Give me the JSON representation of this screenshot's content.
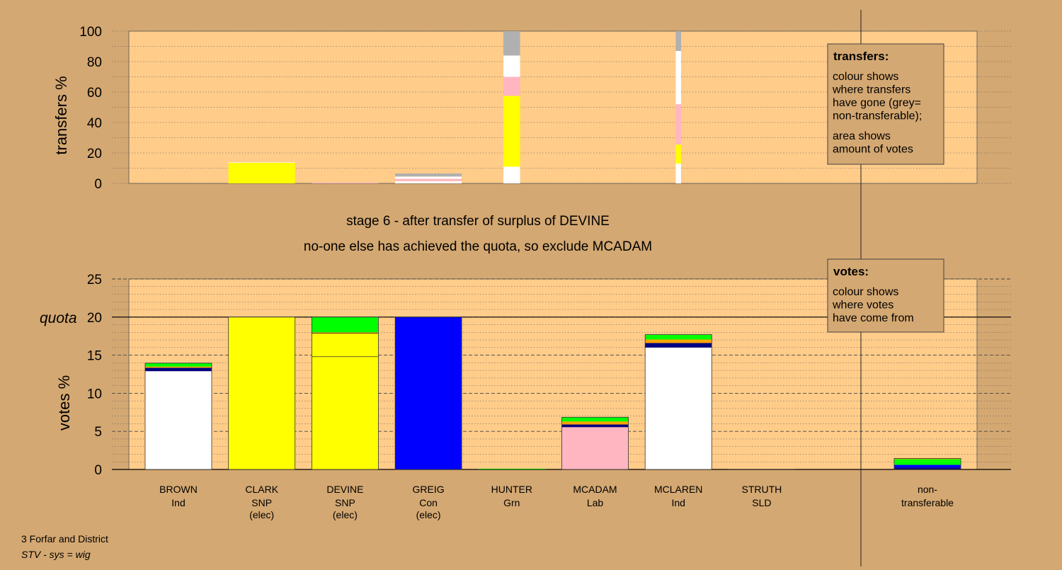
{
  "chart_data": [
    {
      "type": "bar",
      "stacked": true,
      "ylabel": "transfers %",
      "ylim": [
        0,
        100
      ],
      "yticks": [
        0,
        20,
        40,
        60,
        80,
        100
      ],
      "grid": "dotted horizontal every 10",
      "categories": [
        "BROWN",
        "CLARK",
        "DEVINE",
        "GREIG",
        "HUNTER",
        "MCADAM",
        "MCLAREN",
        "STRUTH"
      ],
      "bars": [
        {
          "category": "BROWN",
          "segments": []
        },
        {
          "category": "CLARK",
          "segments": [
            {
              "from": "SNP",
              "color": "#ffff00",
              "value": 13.5
            },
            {
              "from": "Ind",
              "color": "#ffffff",
              "value": 0.3
            }
          ]
        },
        {
          "category": "DEVINE",
          "segments": [
            {
              "from": "Lab",
              "color": "#ffb6c1",
              "value": 0.5
            }
          ]
        },
        {
          "category": "GREIG",
          "segments": [
            {
              "from": "Ind",
              "color": "#ffffff",
              "value": 1.5
            },
            {
              "from": "Lab",
              "color": "#ffb6c1",
              "value": 1.5
            },
            {
              "from": "Ind",
              "color": "#ffffff",
              "value": 1.5
            },
            {
              "from": "non-transferable",
              "color": "#b0b0b0",
              "value": 2.0
            }
          ]
        },
        {
          "category": "HUNTER",
          "segments": [
            {
              "from": "Ind",
              "color": "#ffffff",
              "value": 11
            },
            {
              "from": "SNP",
              "color": "#ffff00",
              "value": 46.5
            },
            {
              "from": "Lab",
              "color": "#ffb6c1",
              "value": 12.5
            },
            {
              "from": "Ind",
              "color": "#ffffff",
              "value": 14
            },
            {
              "from": "non-transferable",
              "color": "#b0b0b0",
              "value": 16
            }
          ]
        },
        {
          "category": "MCADAM",
          "segments": []
        },
        {
          "category": "MCLAREN",
          "segments": [
            {
              "from": "Ind",
              "color": "#ffffff",
              "value": 13
            },
            {
              "from": "SNP",
              "color": "#ffff00",
              "value": 12.5
            },
            {
              "from": "Lab",
              "color": "#ffb6c1",
              "value": 26.5
            },
            {
              "from": "Ind",
              "color": "#ffffff",
              "value": 35
            },
            {
              "from": "non-transferable",
              "color": "#b0b0b0",
              "value": 13
            }
          ]
        },
        {
          "category": "STRUTH",
          "segments": []
        }
      ],
      "bar_width_relative": [
        1,
        1,
        1,
        1,
        0.25,
        1,
        0.08,
        1
      ]
    },
    {
      "type": "bar",
      "stacked": true,
      "ylabel": "votes %",
      "ylim": [
        0,
        25
      ],
      "yticks": [
        0,
        5,
        10,
        15,
        20,
        25
      ],
      "quota": 20,
      "quota_label": "quota",
      "grid": "dashed every 5, dotted every 1",
      "bars": [
        {
          "category": "BROWN",
          "party": "Ind",
          "status": "",
          "segments": [
            {
              "color": "#ffffff",
              "value": 12.9
            },
            {
              "color": "#000080",
              "value": 0.45
            },
            {
              "color": "#ffa500",
              "value": 0.15
            },
            {
              "color": "#00ff00",
              "value": 0.45
            }
          ]
        },
        {
          "category": "CLARK",
          "party": "SNP",
          "status": "(elec)",
          "segments": [
            {
              "color": "#ffff00",
              "value": 20
            }
          ]
        },
        {
          "category": "DEVINE",
          "party": "SNP",
          "status": "(elec)",
          "segments": [
            {
              "color": "#ffff00",
              "value": 14.8
            },
            {
              "color": "#ffff00",
              "value": 3.0
            },
            {
              "color": "#ffa500",
              "value": 0.2
            },
            {
              "color": "#00ff00",
              "value": 2.0
            }
          ]
        },
        {
          "category": "GREIG",
          "party": "Con",
          "status": "(elec)",
          "segments": [
            {
              "color": "#0000ff",
              "value": 20
            }
          ]
        },
        {
          "category": "HUNTER",
          "party": "Grn",
          "status": "",
          "segments": [
            {
              "color": "#00cc00",
              "value": 0.1
            }
          ]
        },
        {
          "category": "MCADAM",
          "party": "Lab",
          "status": "",
          "segments": [
            {
              "color": "#ffb6c1",
              "value": 5.55
            },
            {
              "color": "#000080",
              "value": 0.35
            },
            {
              "color": "#ffa500",
              "value": 0.4
            },
            {
              "color": "#00ff00",
              "value": 0.55
            }
          ]
        },
        {
          "category": "MCLAREN",
          "party": "Ind",
          "status": "",
          "segments": [
            {
              "color": "#ffffff",
              "value": 16.0
            },
            {
              "color": "#000080",
              "value": 0.6
            },
            {
              "color": "#ffa500",
              "value": 0.45
            },
            {
              "color": "#00ff00",
              "value": 0.65
            }
          ]
        },
        {
          "category": "STRUTH",
          "party": "SLD",
          "status": "",
          "segments": [
            {
              "color": "#333333",
              "value": 0.05
            }
          ]
        },
        {
          "category": "non-transferable",
          "party": "",
          "status": "",
          "segments": [
            {
              "color": "#000080",
              "value": 0.25
            },
            {
              "color": "#0000ff",
              "value": 0.35
            },
            {
              "color": "#00ff00",
              "value": 0.75
            },
            {
              "color": "#ffa500",
              "value": 0.1
            }
          ]
        }
      ]
    }
  ],
  "labels": {
    "stage_line1": "stage 6 - after transfer of surplus of DEVINE",
    "stage_line2": "no-one else has achieved the quota, so exclude MCADAM",
    "footer_line1": "3 Forfar and District",
    "footer_line2": "STV - sys = wig"
  },
  "legends": {
    "transfers": {
      "title": "transfers:",
      "lines": [
        "colour shows",
        "where transfers",
        "have gone (grey=",
        "non-transferable);",
        "area shows",
        "amount of votes"
      ]
    },
    "votes": {
      "title": "votes:",
      "lines": [
        "colour shows",
        "where votes",
        "have come from"
      ]
    }
  },
  "colors": {
    "background": "#d4a872",
    "plot_background": "#ffcc8a",
    "grid": "#555555"
  }
}
